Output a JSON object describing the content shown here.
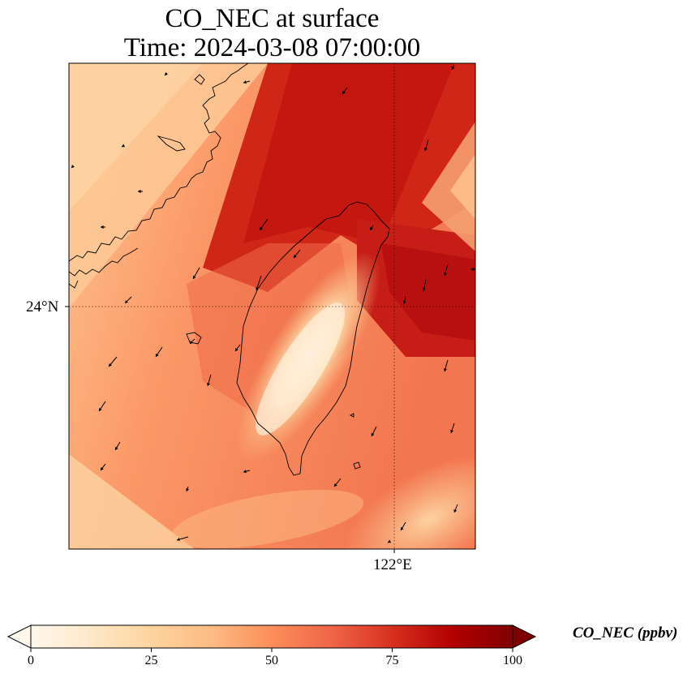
{
  "title": {
    "line1": "CO_NEC at surface",
    "line2": "Time: 2024-03-08 07:00:00"
  },
  "map": {
    "lat_tick_label": "24°N",
    "lon_tick_label": "122°E",
    "colormap": "OrRd",
    "field_description": "",
    "coastline_color": "#000000",
    "gridline_style": "dotted",
    "wind_vector_color": "#000000"
  },
  "colorbar": {
    "label": "CO_NEC (ppbv)",
    "ticks": [
      "0",
      "25",
      "50",
      "75",
      "100"
    ],
    "min": 0,
    "max": 100,
    "extend": "both",
    "colors": [
      "#fff7ec",
      "#fee8c8",
      "#fdd49e",
      "#fdbb84",
      "#fc8d59",
      "#ef6548",
      "#d7301f",
      "#b30000",
      "#7f0000"
    ]
  }
}
